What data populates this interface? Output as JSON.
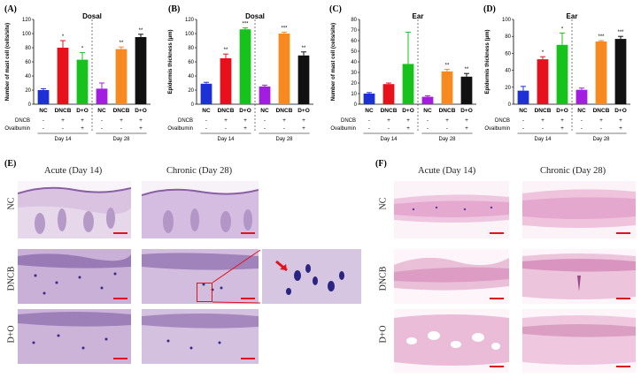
{
  "panels": {
    "A": "(A)",
    "B": "(B)",
    "C": "(C)",
    "D": "(D)",
    "E": "(E)",
    "F": "(F)"
  },
  "colors": {
    "NC": "#1d2fd6",
    "DNCB14": "#e8101a",
    "DO14": "#18c21c",
    "NC28": "#a21de0",
    "DNCB28": "#f7891e",
    "DO28": "#111111",
    "scale_bar": "#e0141e"
  },
  "chart_data": [
    {
      "id": "A",
      "type": "bar",
      "title": "Dosal",
      "ylabel": "Number of mast cell (cells/site)",
      "ylim": [
        0,
        120
      ],
      "yticks": [
        "0",
        "20",
        "40",
        "60",
        "80",
        "100",
        "120"
      ],
      "categories": [
        "NC",
        "DNCB",
        "D+O",
        "NC",
        "DNCB",
        "D+O"
      ],
      "values": [
        20,
        80,
        63,
        22,
        78,
        95
      ],
      "errors": [
        2,
        10,
        10,
        8,
        3,
        4
      ],
      "sig": [
        "",
        "*",
        "*",
        "",
        "**",
        "**"
      ],
      "dncb": [
        "-",
        "+",
        "+",
        "-",
        "+",
        "+"
      ],
      "ova": [
        "-",
        "-",
        "+",
        "-",
        "-",
        "+"
      ],
      "row_labels": [
        "DNCB",
        "Ovalbumin"
      ],
      "groups": [
        "Day 14",
        "Day 28"
      ]
    },
    {
      "id": "B",
      "type": "bar",
      "title": "Dosal",
      "ylabel": "Epidermis thickness (μm)",
      "ylim": [
        0,
        120
      ],
      "yticks": [
        "0",
        "20",
        "40",
        "60",
        "80",
        "100",
        "120"
      ],
      "categories": [
        "NC",
        "DNCB",
        "D+O",
        "NC",
        "DNCB",
        "D+O"
      ],
      "values": [
        29,
        65,
        106,
        25,
        100,
        69
      ],
      "errors": [
        2,
        6,
        2,
        2,
        2,
        5
      ],
      "sig": [
        "",
        "**",
        "***",
        "",
        "***",
        "**"
      ],
      "dncb": [
        "-",
        "+",
        "+",
        "-",
        "+",
        "+"
      ],
      "ova": [
        "-",
        "-",
        "+",
        "-",
        "-",
        "+"
      ],
      "row_labels": [
        "DNCB",
        "Ovalbumin"
      ],
      "groups": [
        "Day 14",
        "Day 28"
      ]
    },
    {
      "id": "C",
      "type": "bar",
      "title": "Ear",
      "ylabel": "Number of mast cell (cells/site)",
      "ylim": [
        0,
        80
      ],
      "yticks": [
        "0",
        "10",
        "20",
        "30",
        "40",
        "50",
        "60",
        "70",
        "80"
      ],
      "categories": [
        "NC",
        "DNCB",
        "D+O",
        "NC",
        "DNCB",
        "D+O"
      ],
      "values": [
        10,
        19,
        38,
        7,
        31,
        26
      ],
      "errors": [
        1,
        1,
        30,
        1,
        2,
        3
      ],
      "sig": [
        "",
        "",
        "",
        "",
        "**",
        "**"
      ],
      "dncb": [
        "-",
        "+",
        "+",
        "-",
        "+",
        "+"
      ],
      "ova": [
        "-",
        "-",
        "+",
        "-",
        "-",
        "+"
      ],
      "row_labels": [
        "DNCB",
        "Ovalbumin"
      ],
      "groups": [
        "Day 14",
        "Day 28"
      ]
    },
    {
      "id": "D",
      "type": "bar",
      "title": "Ear",
      "ylabel": "Epidermis thickness (μm)",
      "ylim": [
        0,
        100
      ],
      "yticks": [
        "0",
        "20",
        "40",
        "60",
        "80",
        "100"
      ],
      "categories": [
        "NC",
        "DNCB",
        "D+O",
        "NC",
        "DNCB",
        "D+O"
      ],
      "values": [
        16,
        53,
        70,
        17,
        74,
        77
      ],
      "errors": [
        5,
        3,
        14,
        2,
        1,
        3
      ],
      "sig": [
        "",
        "*",
        "*",
        "",
        "***",
        "***"
      ],
      "dncb": [
        "-",
        "+",
        "+",
        "-",
        "+",
        "+"
      ],
      "ova": [
        "-",
        "-",
        "+",
        "-",
        "-",
        "+"
      ],
      "row_labels": [
        "DNCB",
        "Ovalbumin"
      ],
      "groups": [
        "Day 14",
        "Day 28"
      ]
    }
  ],
  "histology": {
    "E": {
      "acute": "Acute (Day 14)",
      "chronic": "Chronic (Day 28)",
      "rows": [
        "NC",
        "DNCB",
        "D+O"
      ]
    },
    "F": {
      "acute": "Acute (Day 14)",
      "chronic": "Chronic (Day 28)",
      "rows": [
        "NC",
        "DNCB",
        "D+O"
      ]
    }
  }
}
